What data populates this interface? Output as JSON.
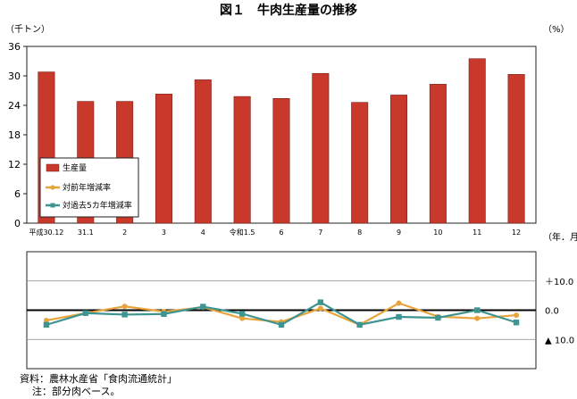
{
  "title": "図１　牛肉生産量の推移",
  "y_left_unit": "（千トン）",
  "y_right_unit": "（%）",
  "x_unit": "（年．月）",
  "source": "資料：農林水産省「食肉流通統計」",
  "note": "注：部分肉ベース。",
  "colors": {
    "bar": "#c8392b",
    "bar_edge": "#7a1f16",
    "yoy": "#e8a33b",
    "avg5": "#3e9491",
    "axis": "#222222",
    "grid": "#888888"
  },
  "chart_data": [
    {
      "type": "bar",
      "categories": [
        "平成30.12",
        "31.1",
        "2",
        "3",
        "4",
        "令和1.5",
        "6",
        "7",
        "8",
        "9",
        "10",
        "11",
        "12"
      ],
      "series": [
        {
          "name": "生産量",
          "values": [
            30.8,
            24.8,
            24.8,
            26.3,
            29.2,
            25.8,
            25.4,
            30.5,
            24.6,
            26.1,
            28.3,
            33.5,
            30.3
          ]
        }
      ],
      "ylim": [
        0,
        36
      ],
      "yticks": [
        0,
        6,
        12,
        18,
        24,
        30,
        36
      ],
      "legend_position": "left-middle"
    },
    {
      "type": "line",
      "categories": [
        "平成30.12",
        "31.1",
        "2",
        "3",
        "4",
        "令和1.5",
        "6",
        "7",
        "8",
        "9",
        "10",
        "11",
        "12"
      ],
      "series": [
        {
          "name": "対前年増減率",
          "values": [
            -3.5,
            -1.0,
            1.3,
            -0.5,
            1.0,
            -2.8,
            -4.0,
            0.6,
            -5.0,
            2.4,
            -2.2,
            -2.8,
            -1.7
          ]
        },
        {
          "name": "対過去5カ年増減率",
          "values": [
            -5.0,
            -1.0,
            -1.5,
            -1.3,
            1.2,
            -1.2,
            -5.0,
            2.7,
            -5.0,
            -2.3,
            -2.6,
            0.0,
            -4.2
          ]
        }
      ],
      "ylim": [
        -20,
        20
      ],
      "yticks": [
        10,
        0,
        -10
      ],
      "ytick_labels": [
        "＋10.0",
        "0.0",
        "▲ 10.0"
      ]
    }
  ]
}
